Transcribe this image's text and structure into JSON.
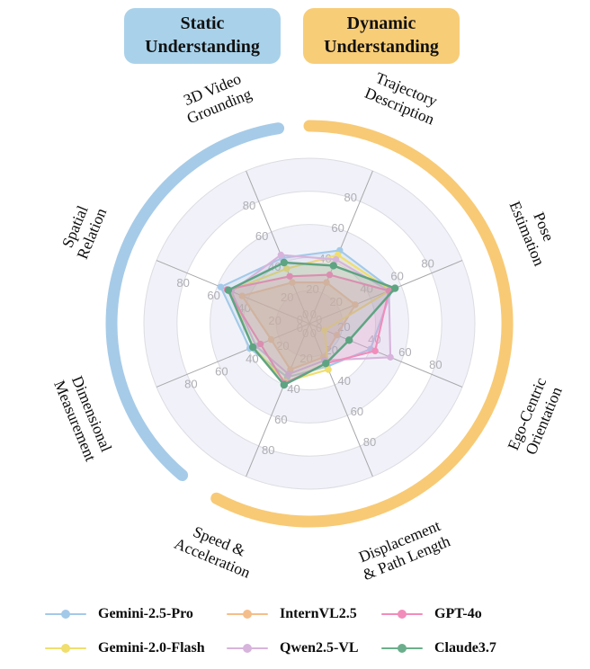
{
  "header": {
    "static_badge": "Static Understanding",
    "dynamic_badge": "Dynamic Understanding",
    "static_color": "#a9d2ea",
    "dynamic_color": "#f8cd78"
  },
  "chart_data": {
    "type": "radar",
    "rmax": 100,
    "ticks": [
      0,
      20,
      40,
      60,
      80
    ],
    "gridlines": "circular, alternating shaded rings",
    "axes": [
      {
        "label": "3D Video Grounding",
        "lines": [
          "3D Video",
          "Grounding"
        ],
        "angle_deg": 112.5,
        "label_rotation": -22.5,
        "group": "static"
      },
      {
        "label": "Trajectory Description",
        "lines": [
          "Trajectory",
          "Description"
        ],
        "angle_deg": 67.5,
        "label_rotation": 22.5,
        "group": "dynamic"
      },
      {
        "label": "Pose Estimation",
        "lines": [
          "Pose",
          "Estimation"
        ],
        "angle_deg": 22.5,
        "label_rotation": 67.5,
        "group": "dynamic"
      },
      {
        "label": "Ego-Centric Orientation",
        "lines": [
          "Ego-Centric",
          "Orientation"
        ],
        "angle_deg": -22.5,
        "label_rotation": -67.5,
        "group": "dynamic"
      },
      {
        "label": "Displacement & Path Length",
        "lines": [
          "Displacement",
          "& Path Length"
        ],
        "angle_deg": -67.5,
        "label_rotation": -22.5,
        "group": "dynamic"
      },
      {
        "label": "Speed & Acceleration",
        "lines": [
          "Speed &",
          "Acceleration"
        ],
        "angle_deg": -112.5,
        "label_rotation": 22.5,
        "group": "dynamic"
      },
      {
        "label": "Dimensional Measurement",
        "lines": [
          "Dimensional",
          "Measurement"
        ],
        "angle_deg": -157.5,
        "label_rotation": 67.5,
        "group": "static"
      },
      {
        "label": "Spatial Relation",
        "lines": [
          "Spatial",
          "Relation"
        ],
        "angle_deg": 157.5,
        "label_rotation": -67.5,
        "group": "static"
      }
    ],
    "series": [
      {
        "name": "Gemini-2.5-Pro",
        "color": "#a3c9e8",
        "values": [
          43,
          48,
          54,
          40,
          28,
          35,
          39,
          58
        ]
      },
      {
        "name": "Gemini-2.0-Flash",
        "color": "#f0de6e",
        "values": [
          36,
          45,
          53,
          10,
          30,
          38,
          37,
          52
        ]
      },
      {
        "name": "InternVL2.5",
        "color": "#f4be8a",
        "values": [
          27,
          27,
          30,
          18,
          22,
          30,
          25,
          44
        ]
      },
      {
        "name": "Qwen2.5-VL",
        "color": "#d7b4dc",
        "values": [
          45,
          42,
          52,
          53,
          24,
          33,
          35,
          51
        ]
      },
      {
        "name": "GPT-4o",
        "color": "#f28cba",
        "values": [
          31,
          32,
          52,
          43,
          26,
          39,
          32,
          54
        ]
      },
      {
        "name": "Claude3.7",
        "color": "#5ea482",
        "values": [
          40,
          38,
          56,
          26,
          26,
          40,
          37,
          53
        ]
      }
    ],
    "arcs": [
      {
        "name": "static-arc",
        "color": "#a6cbe8",
        "start_deg": 99,
        "end_deg": 230
      },
      {
        "name": "dynamic-arc",
        "color": "#f8ca75",
        "start_deg": -118,
        "end_deg": 90
      }
    ],
    "legend_position": "bottom, 3 columns x 2 rows"
  },
  "legend": {
    "items": [
      {
        "label": "Gemini-2.5-Pro",
        "color": "#a3c9e8"
      },
      {
        "label": "Gemini-2.0-Flash",
        "color": "#f0de6e"
      },
      {
        "label": "InternVL2.5",
        "color": "#f4be8a"
      },
      {
        "label": "Qwen2.5-VL",
        "color": "#d7b4dc"
      },
      {
        "label": "GPT-4o",
        "color": "#f28cba"
      },
      {
        "label": "Claude3.7",
        "color": "#6bae8c"
      }
    ]
  }
}
